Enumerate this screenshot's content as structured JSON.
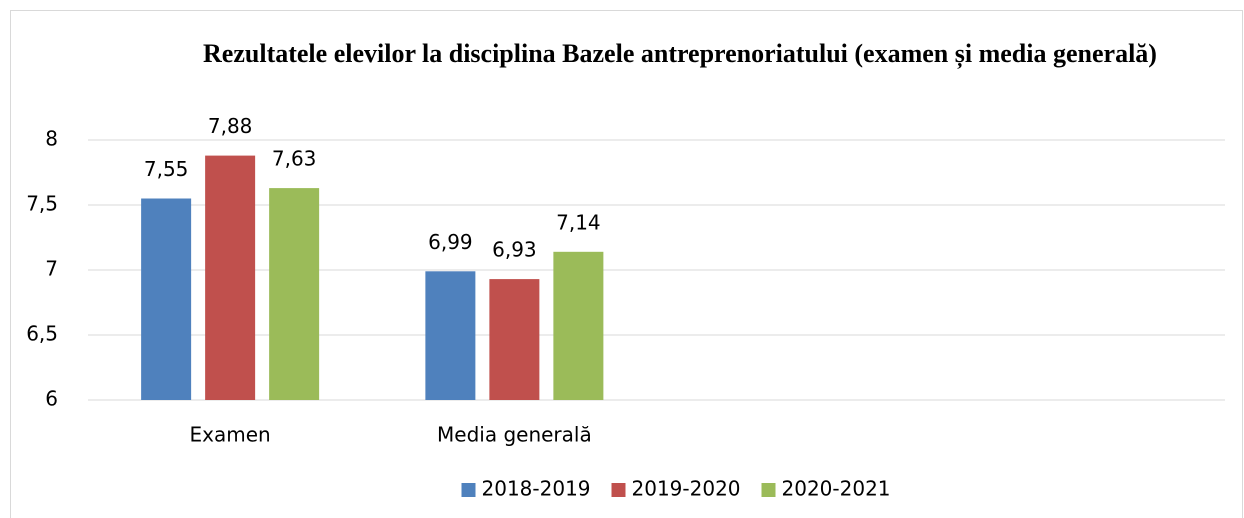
{
  "chart_data": {
    "type": "bar",
    "title": "Rezultatele elevilor la disciplina Bazele antreprenoriatului (examen și media generală)",
    "categories": [
      "Examen",
      "Media generală",
      null,
      null
    ],
    "series": [
      {
        "name": "2018-2019",
        "color": "#4f81bd",
        "values": [
          7.55,
          6.99,
          null,
          null
        ],
        "value_labels": [
          "7,55",
          "6,99",
          null,
          null
        ]
      },
      {
        "name": "2019-2020",
        "color": "#c0504d",
        "values": [
          7.88,
          6.93,
          null,
          null
        ],
        "value_labels": [
          "7,88",
          "6,93",
          null,
          null
        ]
      },
      {
        "name": "2020-2021",
        "color": "#9bbb59",
        "values": [
          7.63,
          7.14,
          null,
          null
        ],
        "value_labels": [
          "7,63",
          "7,14",
          null,
          null
        ]
      }
    ],
    "ylim": [
      6,
      8
    ],
    "yticks": [
      6,
      {
        "value": 6.5,
        "label": "6,5"
      },
      7,
      {
        "value": 7.5,
        "label": "7,5"
      },
      8
    ],
    "grid": true,
    "legend": "bottom"
  }
}
